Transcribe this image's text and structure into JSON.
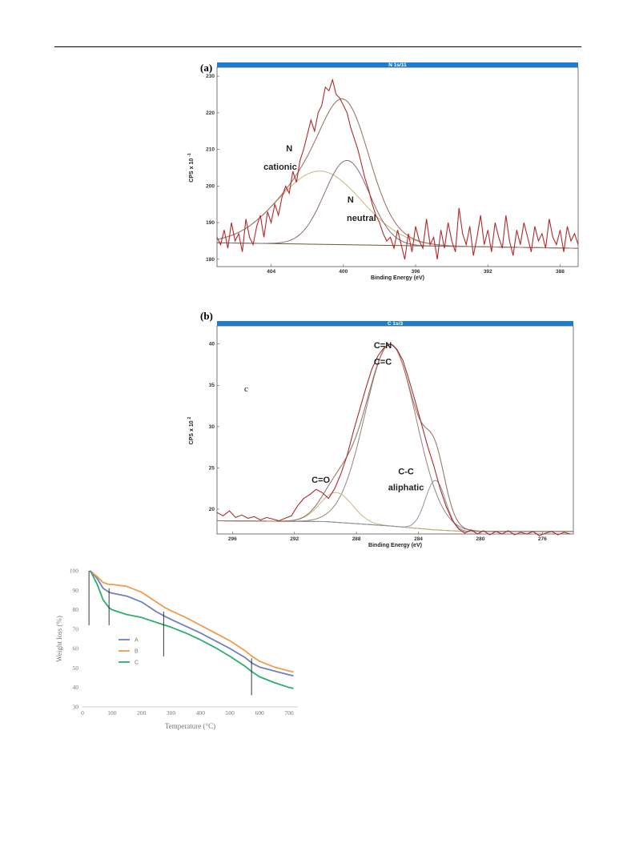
{
  "page": {
    "panel_a_label": "(a)",
    "panel_b_label": "(b)",
    "stray_letter": "c"
  },
  "chart_data": [
    {
      "type": "line",
      "header": "N 1s/11",
      "xlabel": "Binding Energy (eV)",
      "ylabel": "CPS x 10",
      "ylabel_exp": "-1",
      "xlim": [
        407,
        387
      ],
      "ylim": [
        178,
        232
      ],
      "xticks": [
        404,
        400,
        396,
        392,
        388
      ],
      "yticks": [
        180,
        190,
        200,
        210,
        220,
        230
      ],
      "annotations": [
        {
          "text": "N",
          "x": 403.0,
          "y": 209.5
        },
        {
          "text": "cationic",
          "x": 403.5,
          "y": 204.5
        },
        {
          "text": "N",
          "x": 399.6,
          "y": 195.5
        },
        {
          "text": "neutral",
          "x": 399.0,
          "y": 190.5
        }
      ],
      "background": {
        "x": [
          407,
          400,
          387
        ],
        "y": [
          184.5,
          184.0,
          183.0
        ]
      },
      "components": [
        {
          "name": "cationic",
          "center": 401.3,
          "amplitude": 20.0,
          "sigma": 2.3,
          "color": "#c8b878"
        },
        {
          "name": "neutral",
          "center": 399.8,
          "amplitude": 23.0,
          "sigma": 1.25,
          "color": "#8a6a78"
        }
      ],
      "envelope_color": "#9c7868",
      "raw": {
        "color": "#b02a2a",
        "x": [
          407,
          406.8,
          406.6,
          406.4,
          406.2,
          406,
          405.8,
          405.6,
          405.4,
          405.2,
          405,
          404.8,
          404.6,
          404.4,
          404.2,
          404,
          403.8,
          403.6,
          403.4,
          403.2,
          403,
          402.8,
          402.6,
          402.4,
          402.2,
          402,
          401.8,
          401.6,
          401.4,
          401.2,
          401,
          400.8,
          400.6,
          400.4,
          400.2,
          400,
          399.8,
          399.6,
          399.4,
          399.2,
          399,
          398.8,
          398.6,
          398.4,
          398.2,
          398,
          397.8,
          397.6,
          397.4,
          397.2,
          397,
          396.8,
          396.6,
          396.4,
          396.2,
          396,
          395.8,
          395.6,
          395.4,
          395.2,
          395,
          394.8,
          394.6,
          394.4,
          394.2,
          394,
          393.8,
          393.6,
          393.4,
          393.2,
          393,
          392.8,
          392.6,
          392.4,
          392.2,
          392,
          391.8,
          391.6,
          391.4,
          391.2,
          391,
          390.8,
          390.6,
          390.4,
          390.2,
          390,
          389.8,
          389.6,
          389.4,
          389.2,
          389,
          388.8,
          388.6,
          388.4,
          388.2,
          388,
          387.8,
          387.6,
          387.4,
          387.2,
          387
        ],
        "y": [
          186,
          184,
          188,
          183,
          190,
          185,
          187,
          182,
          191,
          186,
          184,
          189,
          192,
          186,
          193,
          190,
          195,
          192,
          197,
          200,
          198,
          204,
          201,
          207,
          210,
          214,
          218,
          215,
          220,
          222,
          227,
          226,
          229,
          225,
          224,
          222,
          220,
          216,
          213,
          210,
          206,
          202,
          199,
          195,
          192,
          190,
          187,
          185,
          186,
          183,
          188,
          184,
          180,
          187,
          182,
          189,
          185,
          183,
          191,
          184,
          186,
          180,
          188,
          183,
          190,
          185,
          182,
          194,
          187,
          184,
          189,
          181,
          186,
          192,
          184,
          188,
          182,
          190,
          186,
          183,
          192,
          185,
          181,
          188,
          184,
          190,
          186,
          182,
          189,
          185,
          187,
          183,
          191,
          186,
          184,
          188,
          182,
          189,
          185,
          187,
          184
        ]
      }
    },
    {
      "type": "line",
      "header": "C 1s/3",
      "xlabel": "Binding Energy (eV)",
      "ylabel": "CPS x 10",
      "ylabel_exp": "2",
      "xlim": [
        297,
        274
      ],
      "ylim": [
        17,
        42
      ],
      "xticks": [
        296,
        292,
        288,
        284,
        280,
        276
      ],
      "yticks": [
        20,
        25,
        30,
        35,
        40
      ],
      "annotations": [
        {
          "text": "C=N",
          "x": 286.3,
          "y": 39.5
        },
        {
          "text": "C=C",
          "x": 286.3,
          "y": 37.5
        },
        {
          "text": "C=O",
          "x": 290.3,
          "y": 23.2
        },
        {
          "text": "C-C",
          "x": 284.8,
          "y": 24.2
        },
        {
          "text": "aliphatic",
          "x": 284.8,
          "y": 22.3
        }
      ],
      "background": {
        "x": [
          297,
          290,
          286,
          283,
          281,
          274
        ],
        "y": [
          18.6,
          18.5,
          18.0,
          17.5,
          17.3,
          17.3
        ]
      },
      "components": [
        {
          "name": "C=N / C=C",
          "center": 285.8,
          "amplitude": 22.0,
          "sigma": 1.65,
          "color": "#9a8078"
        },
        {
          "name": "C=O",
          "center": 289.3,
          "amplitude": 3.6,
          "sigma": 1.05,
          "color": "#c8b878"
        },
        {
          "name": "C-C aliphatic",
          "center": 282.9,
          "amplitude": 6.0,
          "sigma": 0.65,
          "color": "#8898a8"
        }
      ],
      "envelope_color": "#9c7868",
      "raw": {
        "color": "#b02a2a",
        "x": [
          297,
          296.6,
          296.2,
          295.8,
          295.4,
          295,
          294.6,
          294.2,
          293.8,
          293.4,
          293,
          292.6,
          292.2,
          291.8,
          291.4,
          291,
          290.6,
          290.2,
          289.8,
          289.4,
          289,
          288.6,
          288.2,
          287.8,
          287.4,
          287,
          286.6,
          286.2,
          285.8,
          285.4,
          285,
          284.6,
          284.2,
          283.8,
          283.4,
          283,
          282.6,
          282.2,
          281.8,
          281.4,
          281,
          280.6,
          280.2,
          279.8,
          279.4,
          279,
          278.6,
          278.2,
          277.8,
          277.4,
          277,
          276.6,
          276.2,
          275.8,
          275.4,
          275,
          274.6,
          274.2
        ],
        "y": [
          19.6,
          19.2,
          19.8,
          19.0,
          19.3,
          18.9,
          19.1,
          18.7,
          19.0,
          18.8,
          18.6,
          18.9,
          19.2,
          20.4,
          21.3,
          21.8,
          22.4,
          22.0,
          21.3,
          22.5,
          24.3,
          26.5,
          29.4,
          32.0,
          34.6,
          37.0,
          38.6,
          39.6,
          40.0,
          39.4,
          38.0,
          35.6,
          33.0,
          30.3,
          27.6,
          25.2,
          22.5,
          20.3,
          18.6,
          17.6,
          17.1,
          17.5,
          17.0,
          17.4,
          16.9,
          17.3,
          17.0,
          17.4,
          16.9,
          17.2,
          17.0,
          17.3,
          16.8,
          17.1,
          17.3,
          16.9,
          17.2,
          17.0
        ]
      }
    },
    {
      "type": "line",
      "xlabel": "Temperature (°C)",
      "ylabel": "Weight loss (%)",
      "xlim": [
        0,
        730
      ],
      "ylim": [
        30,
        100
      ],
      "xticks": [
        0,
        100,
        200,
        300,
        400,
        500,
        600,
        700
      ],
      "yticks": [
        30,
        40,
        50,
        60,
        70,
        80,
        90,
        100
      ],
      "legend": "inside-left",
      "x": [
        25,
        30,
        50,
        70,
        90,
        100,
        150,
        200,
        250,
        280,
        300,
        350,
        400,
        450,
        500,
        550,
        575,
        600,
        650,
        700,
        715
      ],
      "series": [
        {
          "name": "A",
          "color": "#6f7fbf",
          "values": [
            100,
            99.5,
            96,
            91,
            89,
            88.5,
            87,
            84,
            79,
            76.5,
            75,
            71.5,
            68,
            64,
            60,
            55.5,
            52.5,
            50.5,
            48.5,
            46.5,
            46
          ]
        },
        {
          "name": "B",
          "color": "#f29a4d",
          "values": [
            100,
            99.5,
            97,
            94,
            93,
            93,
            92,
            89,
            84,
            81,
            79.5,
            76,
            72,
            68,
            64,
            59,
            56,
            53.5,
            50.5,
            48.5,
            48
          ]
        },
        {
          "name": "C",
          "color": "#2bae6e",
          "values": [
            100,
            99,
            93,
            85,
            81,
            80,
            77.5,
            76,
            73.5,
            72,
            71,
            68,
            64.5,
            60.5,
            56,
            51,
            48,
            45.5,
            42.5,
            40,
            39.5
          ]
        }
      ],
      "vlines": [
        {
          "x": 22,
          "y": [
            72,
            100
          ]
        },
        {
          "x": 90,
          "y": [
            72,
            91
          ]
        },
        {
          "x": 275,
          "y": [
            56,
            79
          ]
        },
        {
          "x": 573,
          "y": [
            36,
            55
          ]
        }
      ]
    }
  ]
}
